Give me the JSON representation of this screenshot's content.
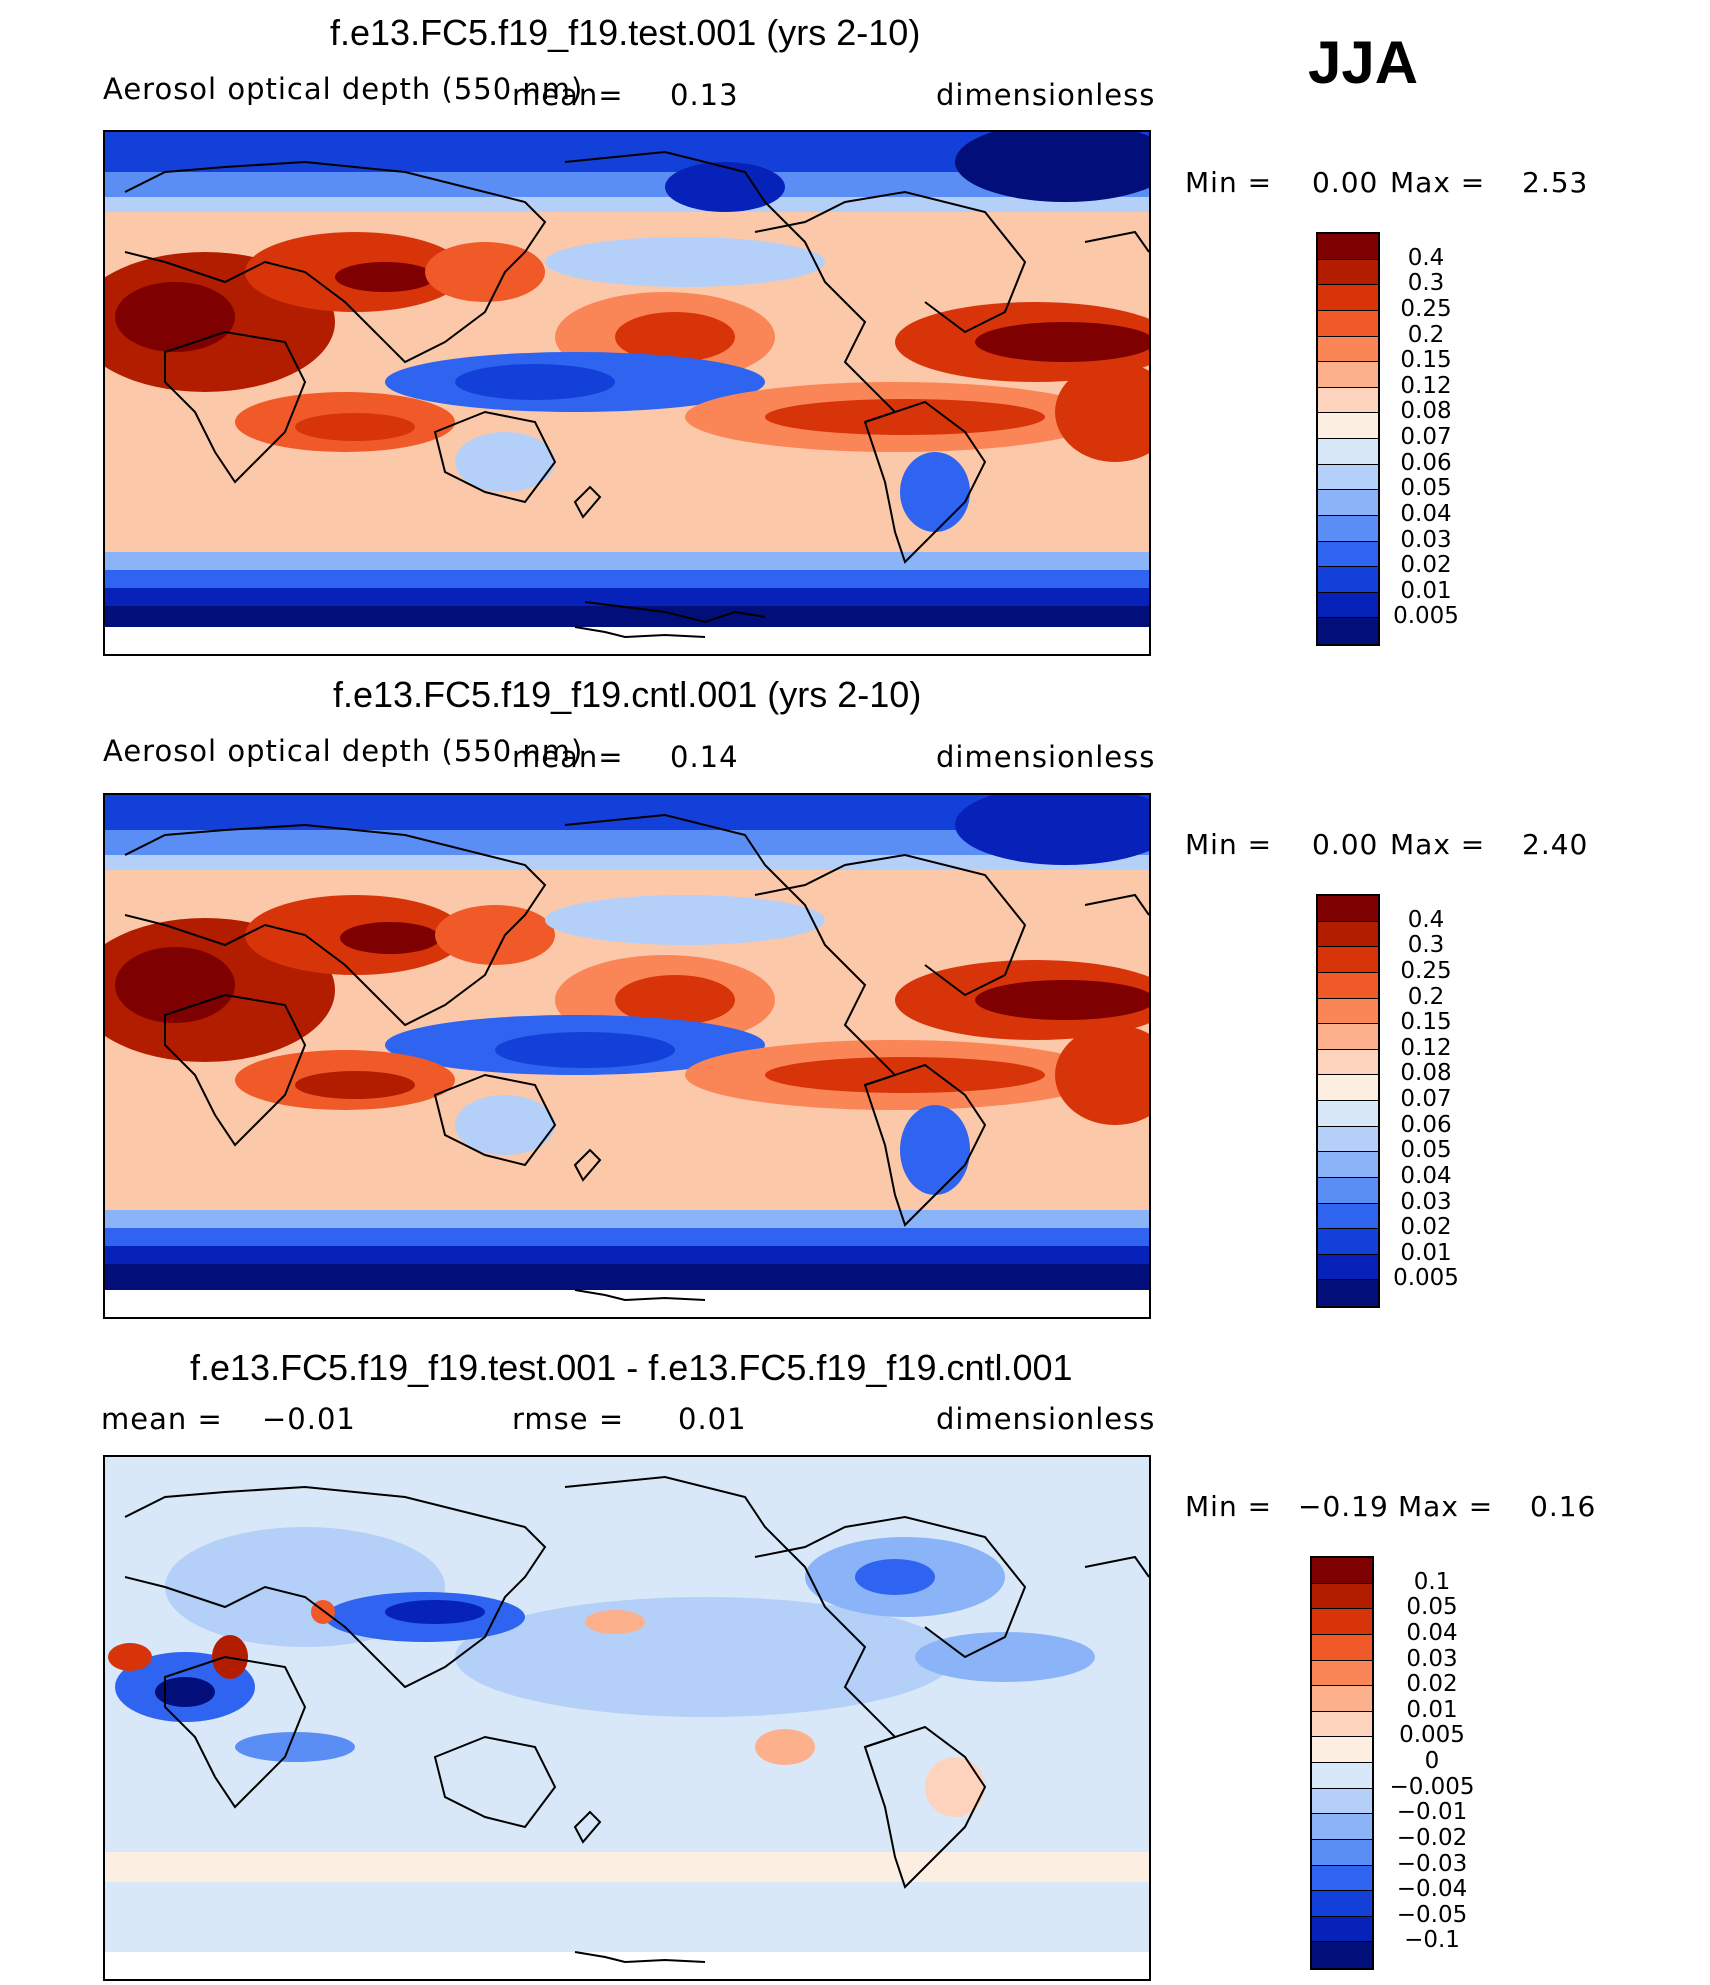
{
  "season": "JJA",
  "panels": [
    {
      "title": "f.e13.FC5.f19_f19.test.001 (yrs 2-10)",
      "variable": "Aerosol optical depth (550 nm)",
      "mean_label": "mean=",
      "mean_value": "0.13",
      "units": "dimensionless",
      "min_label": "Min =",
      "min_value": "0.00",
      "max_label": "Max =",
      "max_value": "2.53",
      "colorbar_labels": [
        "0.4",
        "0.3",
        "0.25",
        "0.2",
        "0.15",
        "0.12",
        "0.08",
        "0.07",
        "0.06",
        "0.05",
        "0.04",
        "0.03",
        "0.02",
        "0.01",
        "0.005"
      ],
      "colorbar_colors": [
        "#7f0000",
        "#b21d00",
        "#d8340a",
        "#f05a28",
        "#fa8657",
        "#fcb08c",
        "#fdd3bd",
        "#fdeee2",
        "#d8e8f8",
        "#b4d0f8",
        "#8ab3f8",
        "#5a8ef5",
        "#2e64ef",
        "#1340d8",
        "#0622b8",
        "#020f7a"
      ]
    },
    {
      "title": "f.e13.FC5.f19_f19.cntl.001 (yrs 2-10)",
      "variable": "Aerosol optical depth (550 nm)",
      "mean_label": "mean=",
      "mean_value": "0.14",
      "units": "dimensionless",
      "min_label": "Min =",
      "min_value": "0.00",
      "max_label": "Max =",
      "max_value": "2.40",
      "colorbar_labels": [
        "0.4",
        "0.3",
        "0.25",
        "0.2",
        "0.15",
        "0.12",
        "0.08",
        "0.07",
        "0.06",
        "0.05",
        "0.04",
        "0.03",
        "0.02",
        "0.01",
        "0.005"
      ],
      "colorbar_colors": [
        "#7f0000",
        "#b21d00",
        "#d8340a",
        "#f05a28",
        "#fa8657",
        "#fcb08c",
        "#fdd3bd",
        "#fdeee2",
        "#d8e8f8",
        "#b4d0f8",
        "#8ab3f8",
        "#5a8ef5",
        "#2e64ef",
        "#1340d8",
        "#0622b8",
        "#020f7a"
      ]
    },
    {
      "title": "f.e13.FC5.f19_f19.test.001 - f.e13.FC5.f19_f19.cntl.001",
      "mean_label": "mean =",
      "mean_value": "−0.01",
      "rmse_label": "rmse =",
      "rmse_value": "0.01",
      "units": "dimensionless",
      "min_label": "Min =",
      "min_value": "−0.19",
      "max_label": "Max =",
      "max_value": "0.16",
      "colorbar_labels": [
        "0.1",
        "0.05",
        "0.04",
        "0.03",
        "0.02",
        "0.01",
        "0.005",
        "0",
        "−0.005",
        "−0.01",
        "−0.02",
        "−0.03",
        "−0.04",
        "−0.05",
        "−0.1"
      ],
      "colorbar_colors": [
        "#7f0000",
        "#b21d00",
        "#d8340a",
        "#f05a28",
        "#fa8657",
        "#fcb08c",
        "#fdd3bd",
        "#fdeee2",
        "#d8e8f8",
        "#b4d0f8",
        "#8ab3f8",
        "#5a8ef5",
        "#2e64ef",
        "#1340d8",
        "#0622b8",
        "#020f7a"
      ]
    }
  ],
  "chart_data": [
    {
      "type": "heatmap",
      "title": "f.e13.FC5.f19_f19.test.001 (yrs 2-10)",
      "subtitle": "Aerosol optical depth (550 nm)",
      "units": "dimensionless",
      "mean": 0.13,
      "min": 0.0,
      "max": 2.53,
      "levels": [
        0.005,
        0.01,
        0.02,
        0.03,
        0.04,
        0.05,
        0.06,
        0.07,
        0.08,
        0.12,
        0.15,
        0.2,
        0.25,
        0.3,
        0.4
      ]
    },
    {
      "type": "heatmap",
      "title": "f.e13.FC5.f19_f19.cntl.001 (yrs 2-10)",
      "subtitle": "Aerosol optical depth (550 nm)",
      "units": "dimensionless",
      "mean": 0.14,
      "min": 0.0,
      "max": 2.4,
      "levels": [
        0.005,
        0.01,
        0.02,
        0.03,
        0.04,
        0.05,
        0.06,
        0.07,
        0.08,
        0.12,
        0.15,
        0.2,
        0.25,
        0.3,
        0.4
      ]
    },
    {
      "type": "heatmap",
      "title": "f.e13.FC5.f19_f19.test.001 - f.e13.FC5.f19_f19.cntl.001",
      "units": "dimensionless",
      "mean": -0.01,
      "rmse": 0.01,
      "min": -0.19,
      "max": 0.16,
      "levels": [
        -0.1,
        -0.05,
        -0.04,
        -0.03,
        -0.02,
        -0.01,
        -0.005,
        0,
        0.005,
        0.01,
        0.02,
        0.03,
        0.04,
        0.05,
        0.1
      ]
    }
  ]
}
